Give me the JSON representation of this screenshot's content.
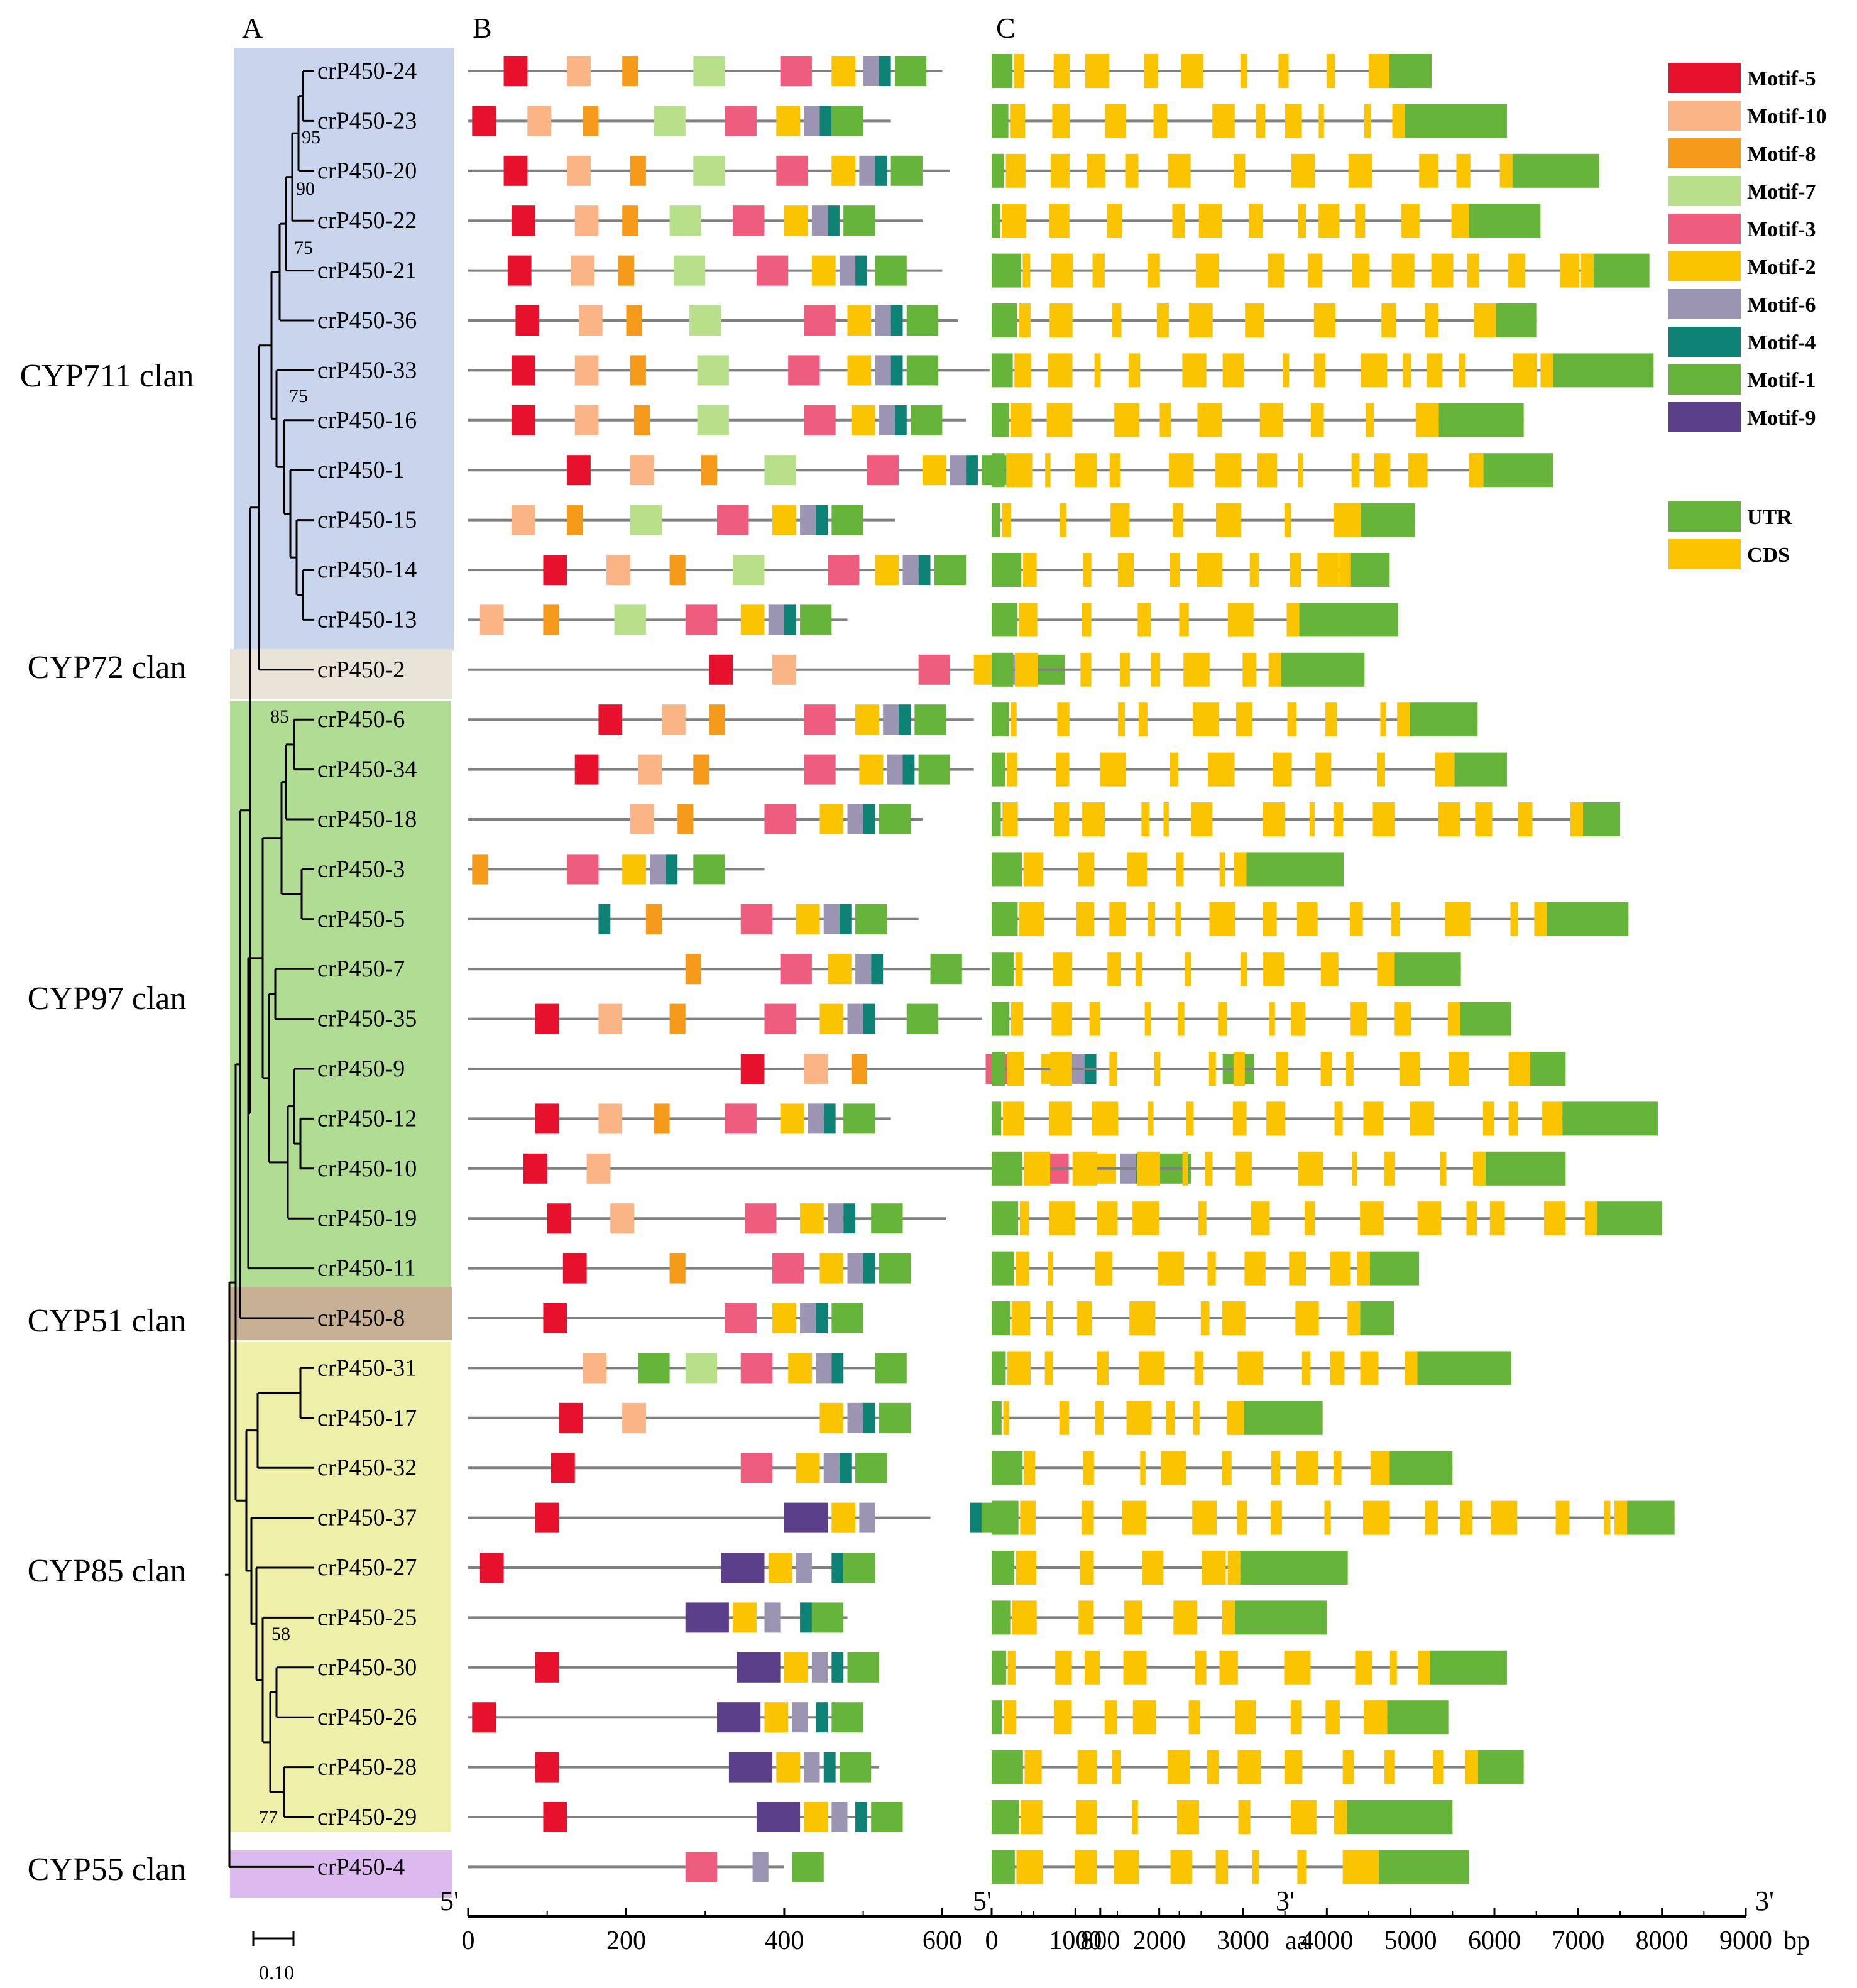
{
  "panels": {
    "a": "A",
    "b": "B",
    "c": "C"
  },
  "scale_bar": {
    "label": "0.10"
  },
  "clades": [
    {
      "name": "CYP711 clan",
      "color": "#c9d5ec"
    },
    {
      "name": "CYP72 clan",
      "color": "#eae3d7"
    },
    {
      "name": "CYP97 clan",
      "color": "#b0dc93"
    },
    {
      "name": "CYP51 clan",
      "color": "#c8b095"
    },
    {
      "name": "CYP85 clan",
      "color": "#eef0a9"
    },
    {
      "name": "CYP55 clan",
      "color": "#dcbaf0"
    }
  ],
  "bootstrap": [
    "95",
    "90",
    "75",
    "75",
    "85",
    "58",
    "77"
  ],
  "genes": [
    "crP450-24",
    "crP450-23",
    "crP450-20",
    "crP450-22",
    "crP450-21",
    "crP450-36",
    "crP450-33",
    "crP450-16",
    "crP450-1",
    "crP450-15",
    "crP450-14",
    "crP450-13",
    "crP450-2",
    "crP450-6",
    "crP450-34",
    "crP450-18",
    "crP450-3",
    "crP450-5",
    "crP450-7",
    "crP450-35",
    "crP450-9",
    "crP450-12",
    "crP450-10",
    "crP450-19",
    "crP450-11",
    "crP450-8",
    "crP450-31",
    "crP450-17",
    "crP450-32",
    "crP450-37",
    "crP450-27",
    "crP450-25",
    "crP450-30",
    "crP450-26",
    "crP450-28",
    "crP450-29",
    "crP450-4"
  ],
  "motif_colors": {
    "m5": "#e8112d",
    "m10": "#fbb486",
    "m8": "#f59a1a",
    "m7": "#b8e08a",
    "m3": "#ee5c7e",
    "m2": "#fac400",
    "m6": "#9b95b3",
    "m4": "#0e8274",
    "m1": "#67b43a",
    "m9": "#5b3f88"
  },
  "legend": {
    "motifs": [
      {
        "key": "m5",
        "label": "Motif-5"
      },
      {
        "key": "m10",
        "label": "Motif-10"
      },
      {
        "key": "m8",
        "label": "Motif-8"
      },
      {
        "key": "m7",
        "label": "Motif-7"
      },
      {
        "key": "m3",
        "label": "Motif-3"
      },
      {
        "key": "m2",
        "label": "Motif-2"
      },
      {
        "key": "m6",
        "label": "Motif-6"
      },
      {
        "key": "m4",
        "label": "Motif-4"
      },
      {
        "key": "m1",
        "label": "Motif-1"
      },
      {
        "key": "m9",
        "label": "Motif-9"
      }
    ],
    "structure": [
      {
        "key": "utr",
        "label": "UTR",
        "color": "#67b43a"
      },
      {
        "key": "cds",
        "label": "CDS",
        "color": "#fac400"
      }
    ]
  },
  "motif_axis": {
    "start_label": "5'",
    "end_label": "3'",
    "unit": "aa",
    "ticks": [
      0,
      200,
      400,
      600,
      800
    ],
    "max": 1030
  },
  "gene_axis": {
    "start_label": "5'",
    "end_label": "3'",
    "unit": "bp",
    "ticks": [
      0,
      1000,
      2000,
      3000,
      4000,
      5000,
      6000,
      7000,
      8000,
      9000
    ],
    "max": 9000
  },
  "chart_data": {
    "type": "gene-structure",
    "protein_lengths_aa": [
      600,
      535,
      610,
      575,
      600,
      620,
      660,
      630,
      690,
      540,
      620,
      480,
      735,
      640,
      640,
      575,
      375,
      570,
      660,
      650,
      1030,
      535,
      745,
      605,
      535,
      490,
      555,
      555,
      505,
      585,
      500,
      480,
      510,
      485,
      520,
      540,
      400
    ],
    "motif_order_example": [
      "Motif-5",
      "Motif-10",
      "Motif-8",
      "Motif-7",
      "Motif-3",
      "Motif-2",
      "Motif-6",
      "Motif-4",
      "Motif-1"
    ],
    "gene_lengths_bp": [
      5250,
      6150,
      7250,
      6550,
      7850,
      6500,
      7900,
      6350,
      6700,
      5050,
      4750,
      4850,
      4450,
      5800,
      6150,
      7500,
      4200,
      7600,
      5600,
      6200,
      6850,
      7950,
      6850,
      8000,
      5100,
      4800,
      6200,
      3950,
      5500,
      8150,
      4250,
      4000,
      6150,
      5450,
      6350,
      5500,
      5700
    ]
  }
}
